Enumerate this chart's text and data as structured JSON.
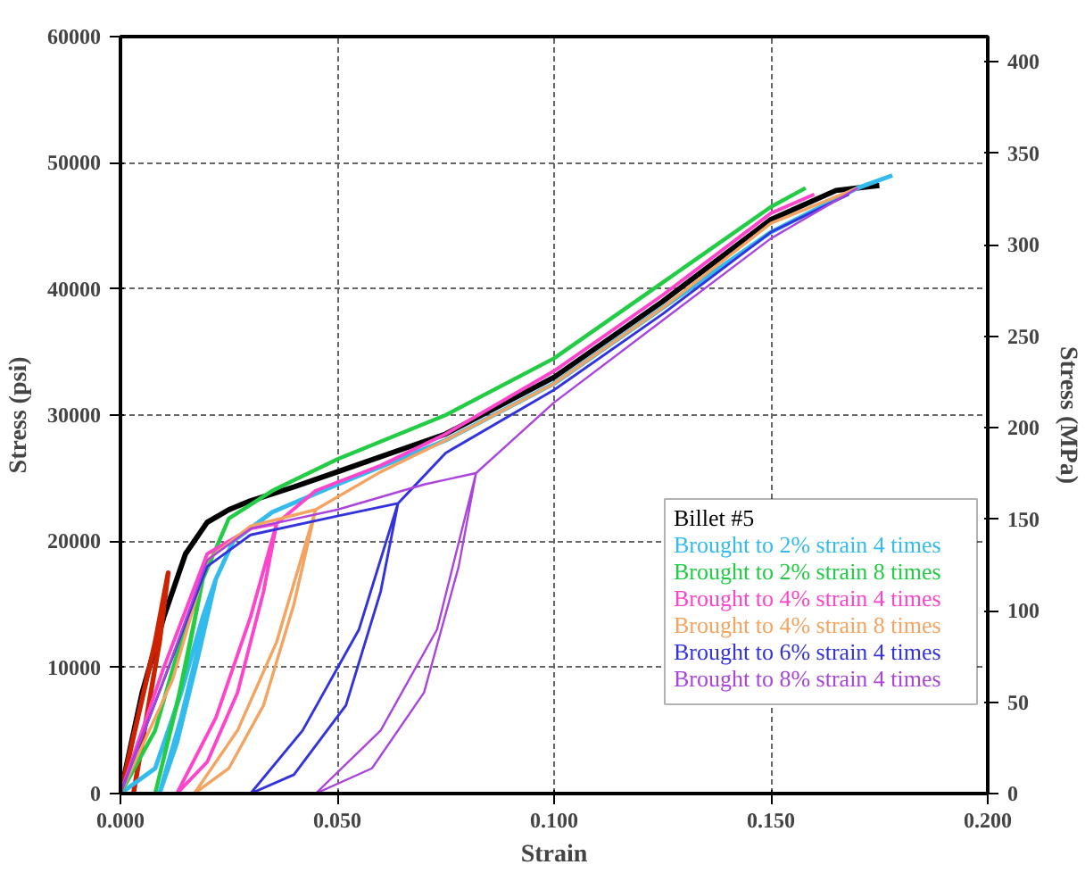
{
  "chart_data": {
    "type": "line",
    "xlabel": "Strain",
    "ylabel": "Stress (psi)",
    "y2label": "Stress (MPa)",
    "legend_title": "Billet #5",
    "xlim": [
      0,
      0.2
    ],
    "xticks": [
      {
        "value": 0,
        "label": "0.000"
      },
      {
        "value": 0.05,
        "label": "0.050"
      },
      {
        "value": 0.1,
        "label": "0.100"
      },
      {
        "value": 0.15,
        "label": "0.150"
      },
      {
        "value": 0.2,
        "label": "0.200"
      }
    ],
    "ylim": [
      0,
      60000
    ],
    "yticks": [
      0,
      10000,
      20000,
      30000,
      40000,
      50000,
      60000
    ],
    "y2lim": [
      0,
      413.7
    ],
    "y2ticks": [
      0,
      50,
      100,
      150,
      200,
      250,
      300,
      350,
      400
    ],
    "grid": true,
    "legend": "bottom right",
    "marker": "none",
    "line_style": "solid",
    "series": [
      {
        "color": "#000000",
        "x": [
          0,
          0.005,
          0.01,
          0.015,
          0.02,
          0.025,
          0.03,
          0.04,
          0.05,
          0.075,
          0.1,
          0.125,
          0.15,
          0.165,
          0.175
        ],
        "values": [
          0,
          8000,
          14000,
          19000,
          21500,
          22500,
          23200,
          24300,
          25500,
          28500,
          33000,
          39000,
          45500,
          47800,
          48200
        ]
      },
      {
        "color": "#cc2200",
        "x": [
          0,
          0.004,
          0.008,
          0.011,
          0.009,
          0.005,
          0.003
        ],
        "values": [
          0,
          6000,
          12000,
          17500,
          12000,
          4000,
          0
        ]
      },
      {
        "name": "Brought to 2% strain 4 times",
        "color": "#33bbee",
        "x": [
          0,
          0.008,
          0.014,
          0.019,
          0.022,
          0.018,
          0.013,
          0.009,
          0.014,
          0.019,
          0.022,
          0.026,
          0.035,
          0.05,
          0.075,
          0.1,
          0.125,
          0.15,
          0.17,
          0.178
        ],
        "values": [
          0,
          2000,
          8000,
          14000,
          17000,
          11000,
          4000,
          0,
          6000,
          13000,
          17000,
          20000,
          22300,
          24500,
          28000,
          32500,
          38500,
          44500,
          48000,
          49000
        ]
      },
      {
        "name": "Brought to 2% strain 8 times",
        "color": "#22cc44",
        "x": [
          0,
          0.008,
          0.013,
          0.019,
          0.015,
          0.008,
          0.013,
          0.019,
          0.025,
          0.035,
          0.05,
          0.075,
          0.1,
          0.125,
          0.15,
          0.158
        ],
        "values": [
          0,
          5000,
          11000,
          17000,
          10000,
          0,
          7000,
          17000,
          21800,
          24000,
          26500,
          30000,
          34500,
          40500,
          46500,
          48000
        ]
      },
      {
        "name": "Brought to 4% strain 4 times",
        "color": "#ff44cc",
        "x": [
          0,
          0.01,
          0.02,
          0.03,
          0.036,
          0.033,
          0.027,
          0.02,
          0.013,
          0.022,
          0.03,
          0.036,
          0.045,
          0.06,
          0.075,
          0.1,
          0.125,
          0.15,
          0.16
        ],
        "values": [
          0,
          10000,
          19000,
          21000,
          21400,
          16000,
          8000,
          2500,
          0,
          6000,
          14000,
          21400,
          24000,
          26000,
          28500,
          33500,
          39500,
          46000,
          47500
        ]
      },
      {
        "name": "Brought to 4% strain 8 times",
        "color": "#f4a460",
        "x": [
          0,
          0.012,
          0.02,
          0.03,
          0.045,
          0.04,
          0.033,
          0.025,
          0.017,
          0.027,
          0.036,
          0.045,
          0.06,
          0.075,
          0.1,
          0.125,
          0.15,
          0.17
        ],
        "values": [
          0,
          9000,
          18500,
          21200,
          22500,
          15000,
          7000,
          2000,
          0,
          5000,
          12000,
          22500,
          25500,
          28000,
          32500,
          38500,
          45200,
          48000
        ]
      },
      {
        "name": "Brought to 6% strain 4 times",
        "color": "#3333dd",
        "x": [
          0,
          0.01,
          0.02,
          0.03,
          0.05,
          0.064,
          0.06,
          0.052,
          0.04,
          0.03,
          0.042,
          0.055,
          0.064,
          0.075,
          0.1,
          0.125,
          0.15,
          0.168
        ],
        "values": [
          0,
          9000,
          18000,
          20500,
          22000,
          23000,
          16000,
          7000,
          1500,
          0,
          5000,
          13000,
          23000,
          27000,
          32000,
          38000,
          44500,
          47500
        ]
      },
      {
        "name": "Brought to 8% strain 4 times",
        "color": "#aa44dd",
        "x": [
          0,
          0.01,
          0.02,
          0.03,
          0.05,
          0.07,
          0.082,
          0.078,
          0.07,
          0.058,
          0.045,
          0.06,
          0.073,
          0.082,
          0.1,
          0.125,
          0.15,
          0.17
        ],
        "values": [
          0,
          9000,
          18500,
          21000,
          22500,
          24500,
          25400,
          18000,
          8000,
          2000,
          0,
          5000,
          13000,
          25400,
          31000,
          37500,
          44000,
          48000
        ]
      }
    ]
  }
}
